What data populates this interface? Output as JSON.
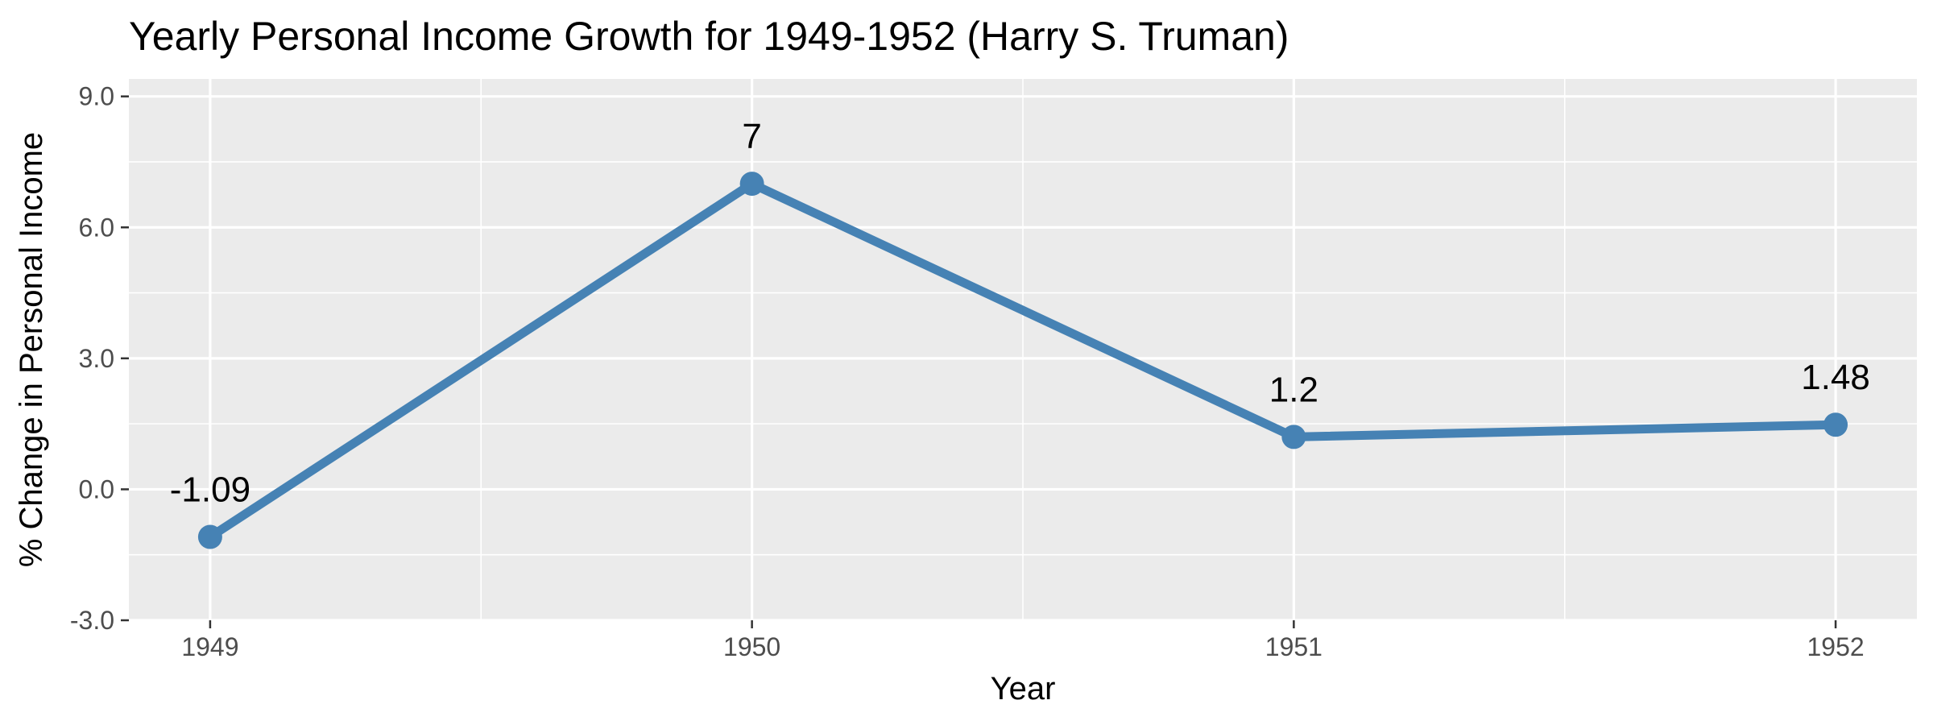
{
  "chart_data": {
    "type": "line",
    "title": "Yearly Personal Income Growth for 1949-1952 (Harry S. Truman)",
    "xlabel": "Year",
    "ylabel": "% Change in Personal Income",
    "x": [
      1949,
      1950,
      1951,
      1952
    ],
    "x_tick_labels": [
      "1949",
      "1950",
      "1951",
      "1952"
    ],
    "values": [
      -1.09,
      7,
      1.2,
      1.48
    ],
    "data_labels": [
      "-1.09",
      "7",
      "1.2",
      "1.48"
    ],
    "y_ticks": [
      -3,
      0,
      3,
      6,
      9
    ],
    "y_tick_labels": [
      "-3.0",
      "0.0",
      "3.0",
      "6.0",
      "9.0"
    ],
    "ylim": [
      -3,
      9.4
    ],
    "xlim": [
      1948.85,
      1952.15
    ],
    "grid": true,
    "legend": "none",
    "colors": {
      "line": "#4682b4",
      "panel": "#ebebeb",
      "grid": "#ffffff"
    }
  }
}
